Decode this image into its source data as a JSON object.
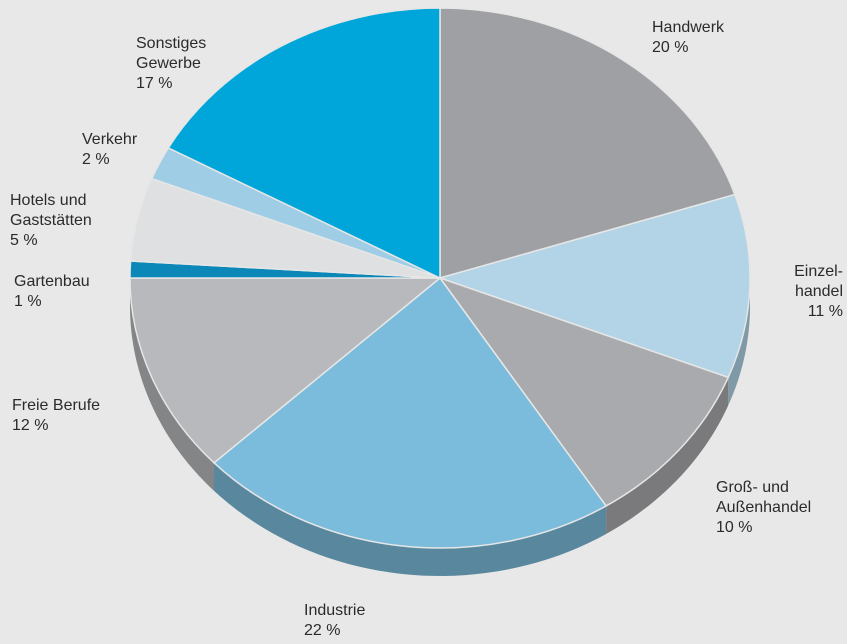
{
  "chart_data": {
    "type": "pie",
    "title": "",
    "series": [
      {
        "slices": [
          {
            "label_lines": [
              "Handwerk"
            ],
            "percent_text": "20 %",
            "value": 20,
            "color": "#9fa0a3"
          },
          {
            "label_lines": [
              "Einzel-",
              "handel"
            ],
            "percent_text": "11 %",
            "value": 11,
            "color": "#b2d4e6"
          },
          {
            "label_lines": [
              "Groß- und",
              "Außenhandel"
            ],
            "percent_text": "10 %",
            "value": 10,
            "color": "#a9aaad"
          },
          {
            "label_lines": [
              "Industrie"
            ],
            "percent_text": "22 %",
            "value": 22,
            "color": "#7bbcdc"
          },
          {
            "label_lines": [
              "Freie Berufe"
            ],
            "percent_text": "12 %",
            "value": 12,
            "color": "#b8b9bc"
          },
          {
            "label_lines": [
              "Gartenbau"
            ],
            "percent_text": "1 %",
            "value": 1,
            "color": "#0b88b8"
          },
          {
            "label_lines": [
              "Hotels und",
              "Gaststätten"
            ],
            "percent_text": "5 %",
            "value": 5,
            "color": "#dfe0e2"
          },
          {
            "label_lines": [
              "Verkehr"
            ],
            "percent_text": "2 %",
            "value": 2,
            "color": "#9fcde6"
          },
          {
            "label_lines": [
              "Sonstiges",
              "Gewerbe"
            ],
            "percent_text": "17 %",
            "value": 17,
            "color": "#00a5d9"
          }
        ]
      }
    ],
    "legend": "none",
    "labels": "outside"
  }
}
